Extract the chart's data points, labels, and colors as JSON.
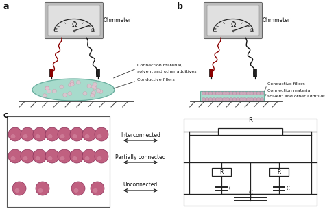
{
  "bg_color": "#ffffff",
  "label_a": "a",
  "label_b": "b",
  "label_c": "c",
  "ohmmeter_text": "Ohmmeter",
  "omega_text": "Ω",
  "conn_material_text": "Connection material,",
  "solvent_text": "solvent and other additives",
  "cond_fillers_text_a": "Conductive fillers",
  "cond_fillers_text_b": "Conductive fillers",
  "conn_material_b1": "Connection material",
  "conn_material_b2": "solvent and other additives",
  "interconnected_text": "Interconnected",
  "partially_text": "Partially connected",
  "unconnected_text": "Unconnected",
  "r_text": "R",
  "c_text": "C",
  "sphere_color": "#c06080",
  "sphere_edge": "#8a3058",
  "sphere_highlight": "#d890a8",
  "teal_color": "#a0d8c8",
  "teal_edge": "#60a898",
  "meter_gray": "#c0c0c0",
  "meter_light": "#d8d8d8",
  "wire_red": "#8b0000",
  "wire_black": "#111111",
  "probe_red": "#8b0000",
  "ground_color": "#444444",
  "circuit_color": "#222222",
  "annotation_color": "#111111",
  "arrow_color": "#222222"
}
